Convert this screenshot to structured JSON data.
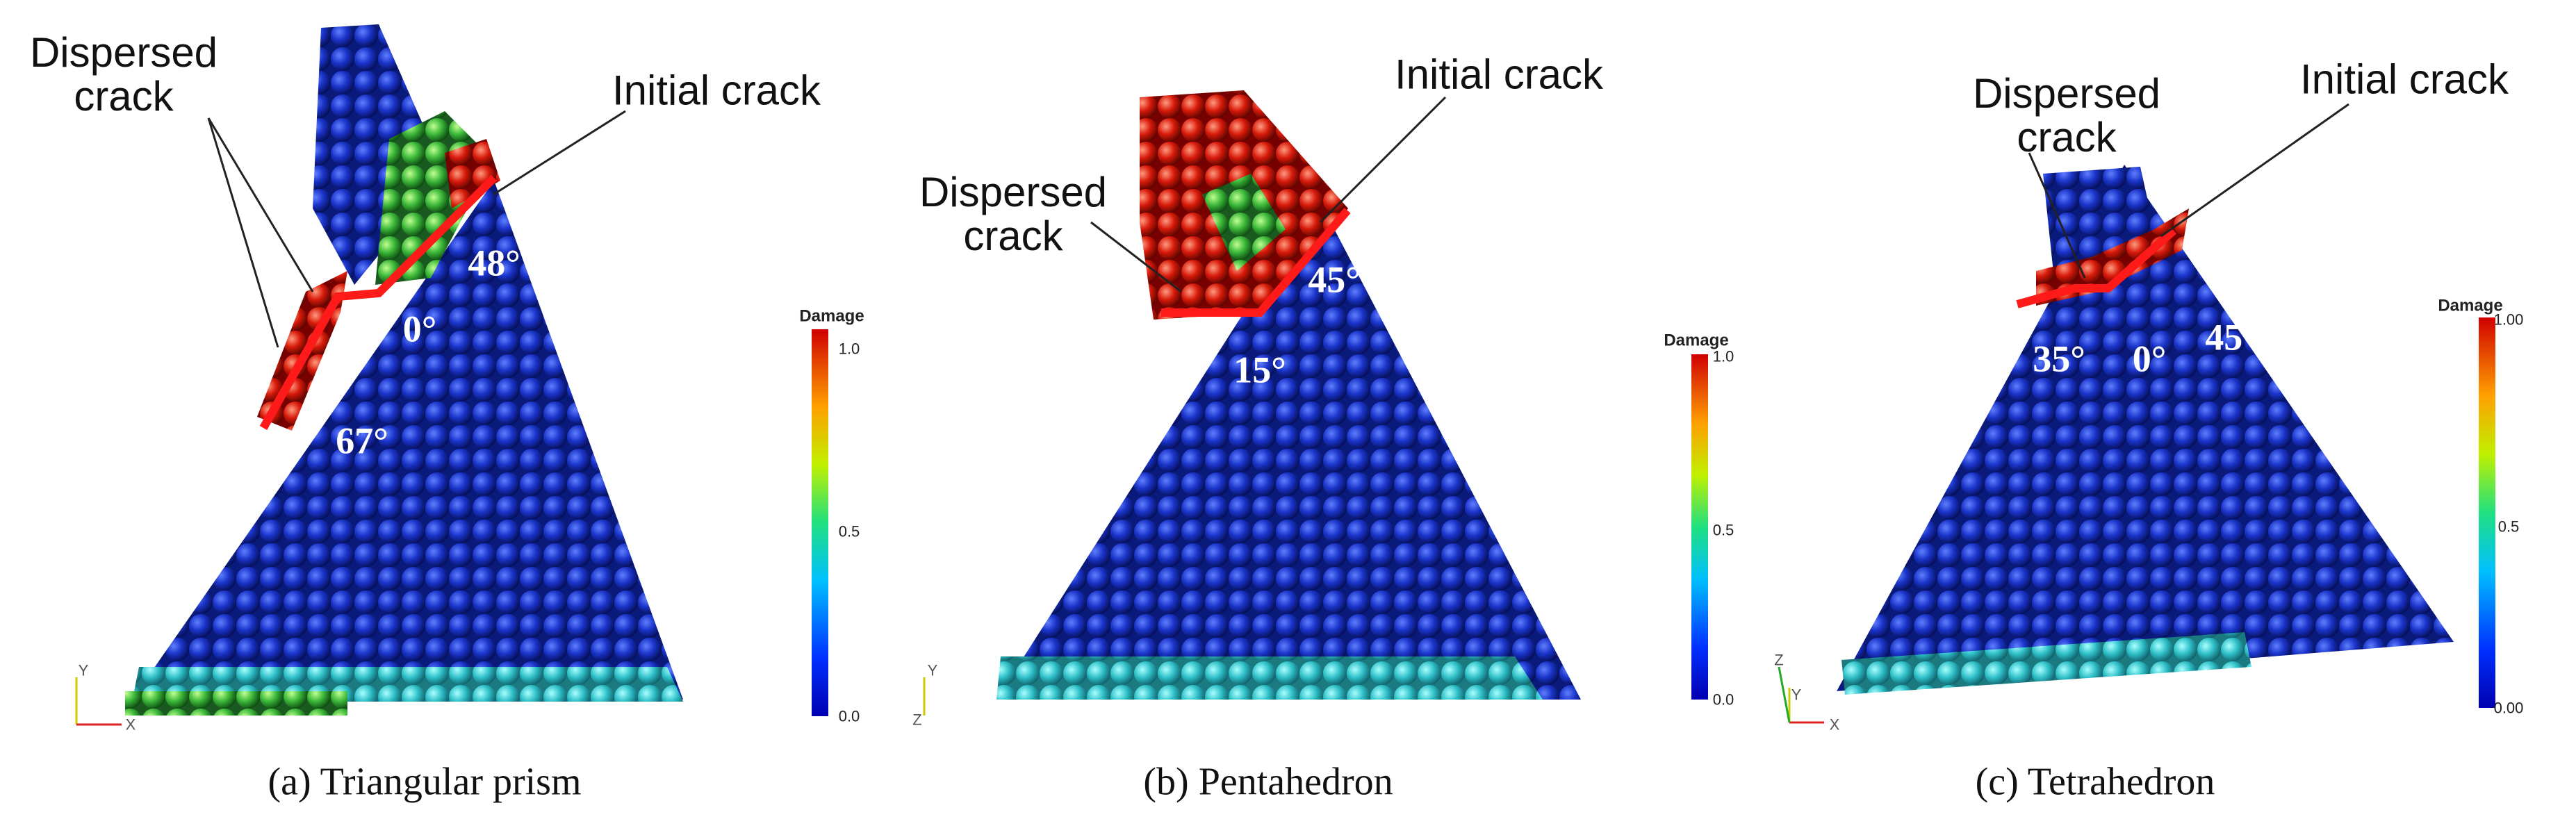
{
  "panels": [
    {
      "caption": "(a) Triangular prism",
      "callouts": [
        "Dispersed crack",
        "Initial crack"
      ],
      "angles": [
        "48°",
        "0°",
        "67°"
      ],
      "colorbar": {
        "title": "Damage",
        "ticks": [
          "1.0",
          "0.5",
          "0.0"
        ]
      },
      "axes": [
        "Y",
        "X"
      ]
    },
    {
      "caption": "(b) Pentahedron",
      "callouts": [
        "Dispersed crack",
        "Initial crack"
      ],
      "angles": [
        "45°",
        "15°"
      ],
      "colorbar": {
        "title": "Damage",
        "ticks": [
          "1.0",
          "0.5",
          "0.0"
        ]
      },
      "axes": [
        "Y",
        "Z"
      ]
    },
    {
      "caption": "(c) Tetrahedron",
      "callouts": [
        "Dispersed crack",
        "Initial crack"
      ],
      "angles": [
        "35°",
        "0°",
        "45°"
      ],
      "colorbar": {
        "title": "Damage",
        "ticks": [
          "1.00",
          "0.5",
          "0.00"
        ]
      },
      "axes": [
        "Z",
        "Y",
        "X"
      ]
    }
  ]
}
